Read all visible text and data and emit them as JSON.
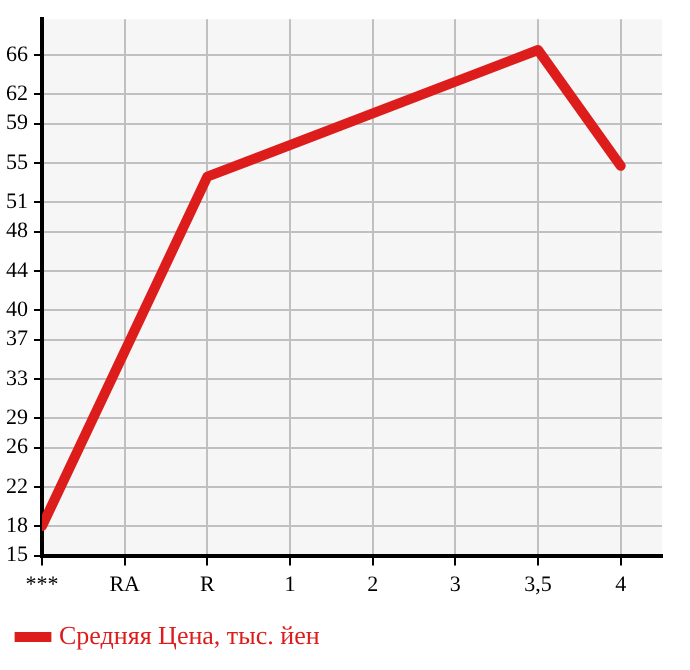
{
  "chart_data": {
    "type": "line",
    "categories": [
      "***",
      "RA",
      "R",
      "1",
      "2",
      "3",
      "3,5",
      "4"
    ],
    "series": [
      {
        "name": "Средняя Цена, тыс. йен",
        "color": "#dd1c1c",
        "values": [
          18,
          null,
          53.6,
          null,
          null,
          null,
          66.5,
          54.7
        ]
      }
    ],
    "ylim": [
      15,
      69.64
    ],
    "yticks": [
      15,
      18,
      22,
      26,
      29,
      33,
      37,
      40,
      44,
      48,
      51,
      55,
      59,
      62,
      66
    ],
    "grid": true,
    "legend": "bottom",
    "marker": "none",
    "line_style": "solid"
  }
}
